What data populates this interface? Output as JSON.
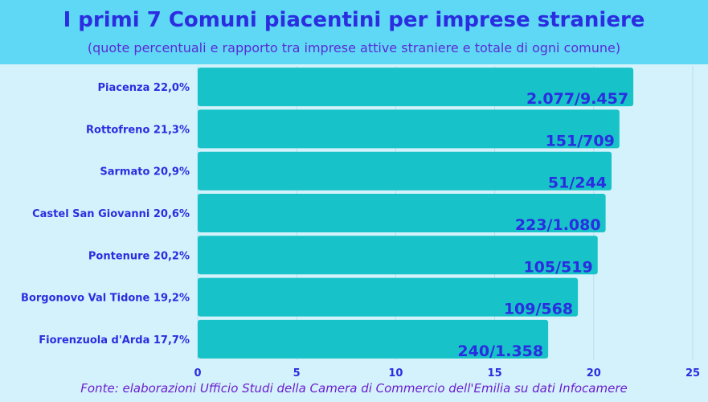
{
  "header": {
    "title": "I primi 7 Comuni piacentini per imprese straniere",
    "subtitle": "(quote percentuali e rapporto tra imprese attive straniere e totale di ogni comune)"
  },
  "footer": {
    "source": "Fonte: elaborazioni Ufficio Studi  della Camera di Commercio  dell'Emilia su dati Infocamere"
  },
  "colors": {
    "bar": "#17c3c8",
    "text": "#2b2de0",
    "grid": "#b7dcf0"
  },
  "chart_data": {
    "type": "bar",
    "orientation": "horizontal",
    "categories": [
      "Piacenza 22,0%",
      "Rottofreno 21,3%",
      "Sarmato 20,9%",
      "Castel San Giovanni 20,6%",
      "Pontenure 20,2%",
      "Borgonovo Val Tidone 19,2%",
      "Fiorenzuola d'Arda 17,7%"
    ],
    "values": [
      22.0,
      21.3,
      20.9,
      20.6,
      20.2,
      19.2,
      17.7
    ],
    "data_labels": [
      "2.077/9.457",
      "151/709",
      "51/244",
      "223/1.080",
      "105/519",
      "109/568",
      "240/1.358"
    ],
    "xlim": [
      0,
      25
    ],
    "xticks": [
      "0",
      "5",
      "10",
      "15",
      "20",
      "25"
    ],
    "grid": true
  }
}
